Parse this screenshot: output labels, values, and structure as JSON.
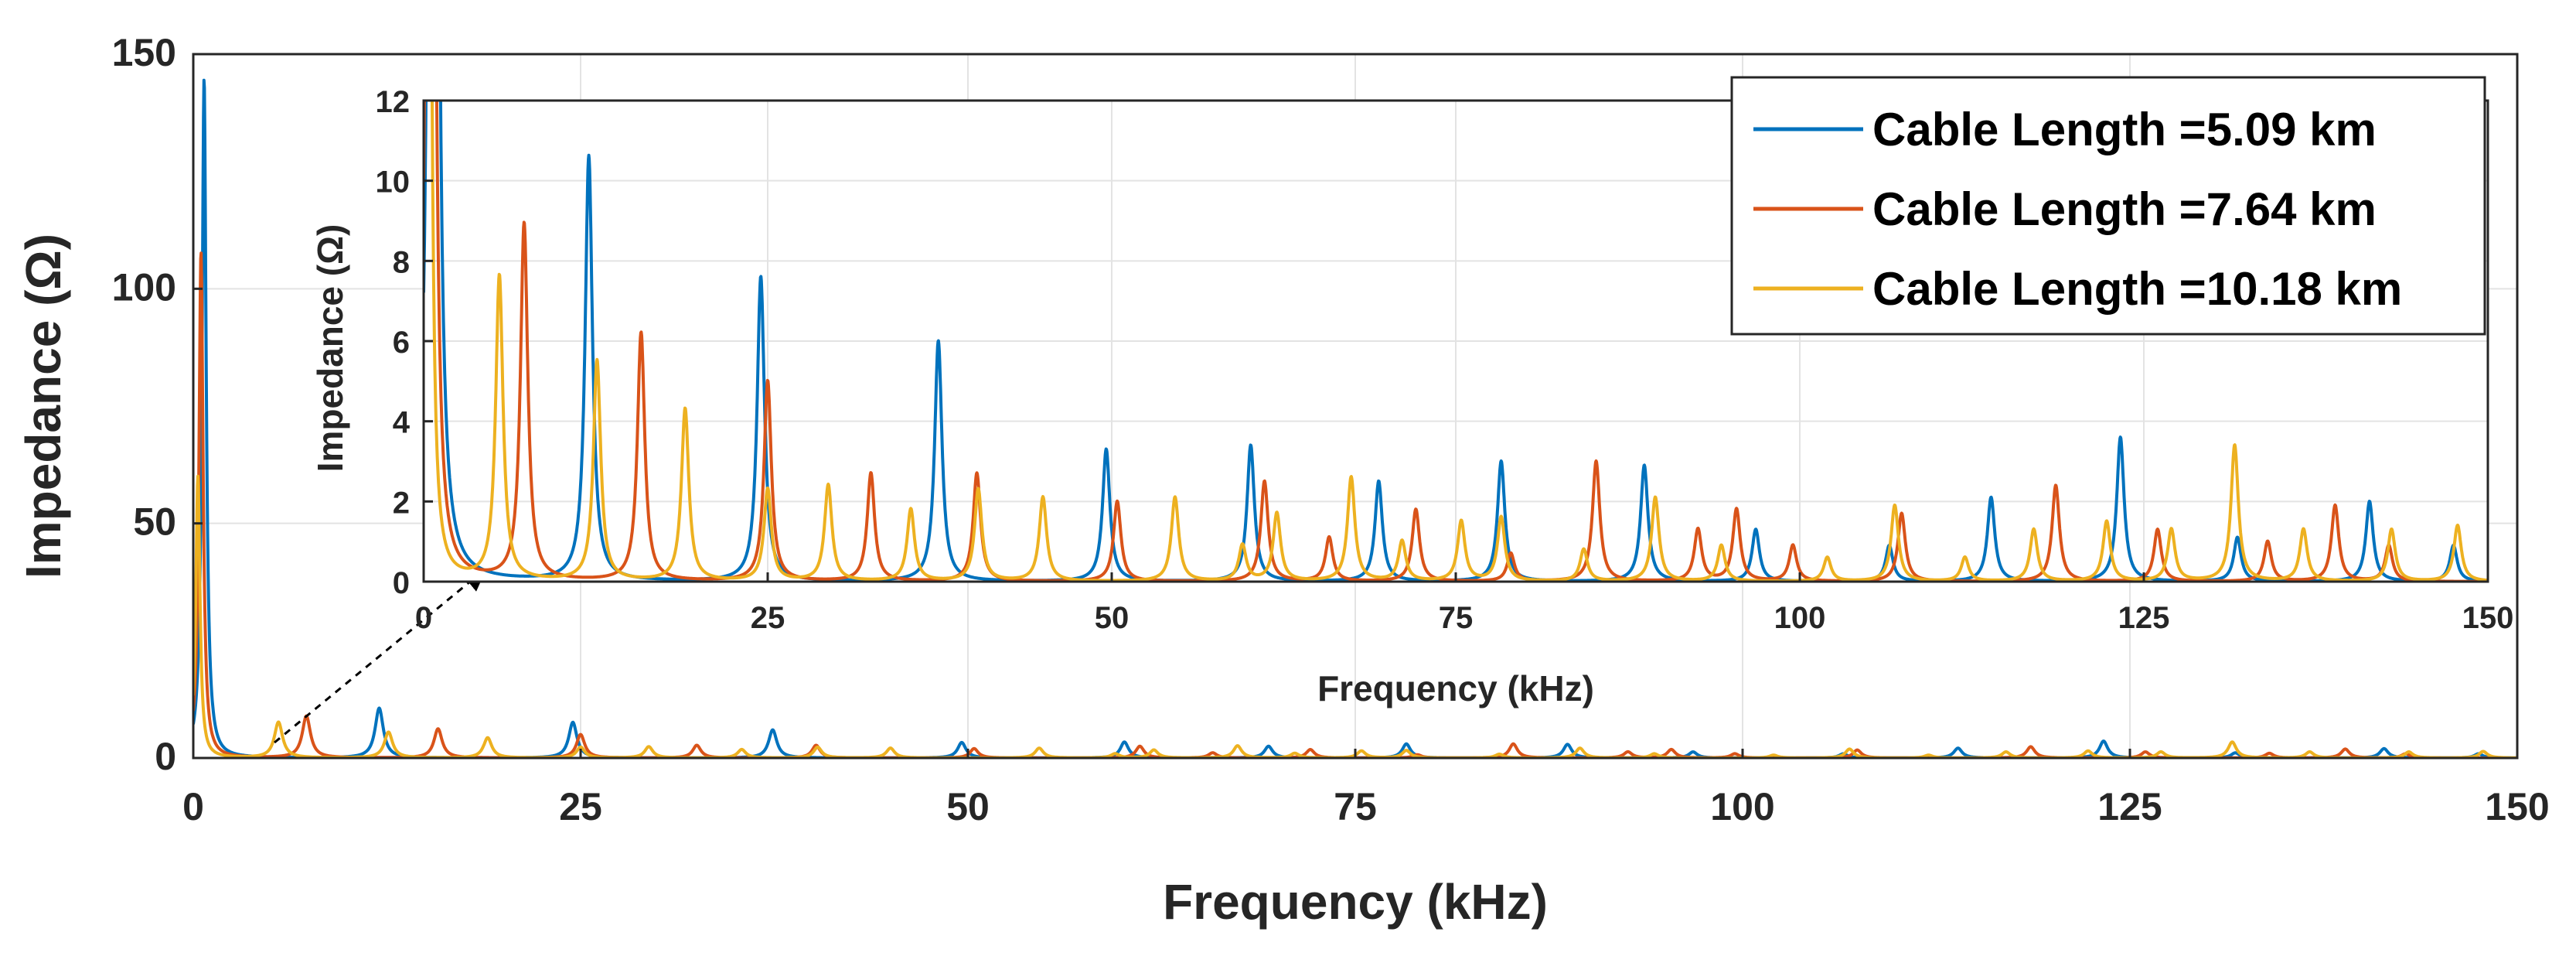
{
  "chart_data": {
    "type": "line",
    "main": {
      "xlabel": "Frequency (kHz)",
      "ylabel": "Impedance (Ω)",
      "xlim": [
        0,
        150
      ],
      "ylim": [
        0,
        150
      ],
      "xticks": [
        0,
        25,
        50,
        75,
        100,
        125,
        150
      ],
      "yticks": [
        0,
        50,
        100,
        150
      ],
      "xtick_labels": [
        "0",
        "25",
        "50",
        "75",
        "100",
        "125",
        "150"
      ],
      "ytick_labels": [
        "0",
        "50",
        "100",
        "150"
      ],
      "grid": true
    },
    "inset": {
      "xlabel": "Frequency (kHz)",
      "ylabel": "Impedance (Ω)",
      "xlim": [
        0,
        150
      ],
      "ylim": [
        0,
        12
      ],
      "xticks": [
        0,
        25,
        50,
        75,
        100,
        125,
        150
      ],
      "yticks": [
        0,
        2,
        4,
        6,
        8,
        10,
        12
      ],
      "xtick_labels": [
        "0",
        "25",
        "50",
        "75",
        "100",
        "125",
        "150"
      ],
      "ytick_labels": [
        "0",
        "2",
        "4",
        "6",
        "8",
        "10",
        "12"
      ],
      "grid": true
    },
    "legend_position": "top-right",
    "series": [
      {
        "name": "Cable Length =5.09 km",
        "color": "#0072BD",
        "peaks": [
          [
            0.7,
            145
          ],
          [
            12.0,
            10.6
          ],
          [
            24.5,
            7.6
          ],
          [
            37.4,
            6.0
          ],
          [
            49.6,
            3.3
          ],
          [
            60.1,
            3.4
          ],
          [
            69.4,
            2.5
          ],
          [
            78.3,
            3.0
          ],
          [
            88.7,
            2.9
          ],
          [
            96.8,
            1.3
          ],
          [
            106.5,
            0.9
          ],
          [
            113.9,
            2.1
          ],
          [
            123.3,
            3.6
          ],
          [
            131.8,
            1.1
          ],
          [
            141.4,
            2.0
          ],
          [
            147.5,
            0.9
          ]
        ]
      },
      {
        "name": "Cable Length =7.64 km",
        "color": "#D95319",
        "peaks": [
          [
            0.5,
            108
          ],
          [
            7.3,
            8.9
          ],
          [
            15.8,
            6.2
          ],
          [
            25.0,
            5.0
          ],
          [
            32.5,
            2.7
          ],
          [
            40.2,
            2.7
          ],
          [
            50.4,
            2.0
          ],
          [
            61.1,
            2.5
          ],
          [
            65.8,
            1.1
          ],
          [
            72.1,
            1.8
          ],
          [
            79.0,
            0.7
          ],
          [
            85.2,
            3.0
          ],
          [
            92.6,
            1.3
          ],
          [
            95.4,
            1.8
          ],
          [
            99.5,
            0.9
          ],
          [
            107.4,
            1.7
          ],
          [
            118.6,
            2.4
          ],
          [
            126.0,
            1.3
          ],
          [
            134.0,
            1.0
          ],
          [
            138.9,
            1.9
          ],
          [
            142.8,
            0.9
          ]
        ]
      },
      {
        "name": "Cable Length =10.18 km",
        "color": "#EDB120",
        "peaks": [
          [
            0.3,
            60
          ],
          [
            5.5,
            7.6
          ],
          [
            12.6,
            5.5
          ],
          [
            19.0,
            4.3
          ],
          [
            25.0,
            2.3
          ],
          [
            29.4,
            2.4
          ],
          [
            35.4,
            1.8
          ],
          [
            40.3,
            2.3
          ],
          [
            45.0,
            2.1
          ],
          [
            54.6,
            2.1
          ],
          [
            59.5,
            0.9
          ],
          [
            62.0,
            1.7
          ],
          [
            67.4,
            2.6
          ],
          [
            71.1,
            1.0
          ],
          [
            75.4,
            1.5
          ],
          [
            78.3,
            1.6
          ],
          [
            84.3,
            0.8
          ],
          [
            89.5,
            2.1
          ],
          [
            94.3,
            0.9
          ],
          [
            102.0,
            0.6
          ],
          [
            106.9,
            1.9
          ],
          [
            112.0,
            0.6
          ],
          [
            117.0,
            1.3
          ],
          [
            122.3,
            1.5
          ],
          [
            127.0,
            1.3
          ],
          [
            131.6,
            3.4
          ],
          [
            136.6,
            1.3
          ],
          [
            143.0,
            1.3
          ],
          [
            147.8,
            1.4
          ]
        ]
      }
    ]
  }
}
